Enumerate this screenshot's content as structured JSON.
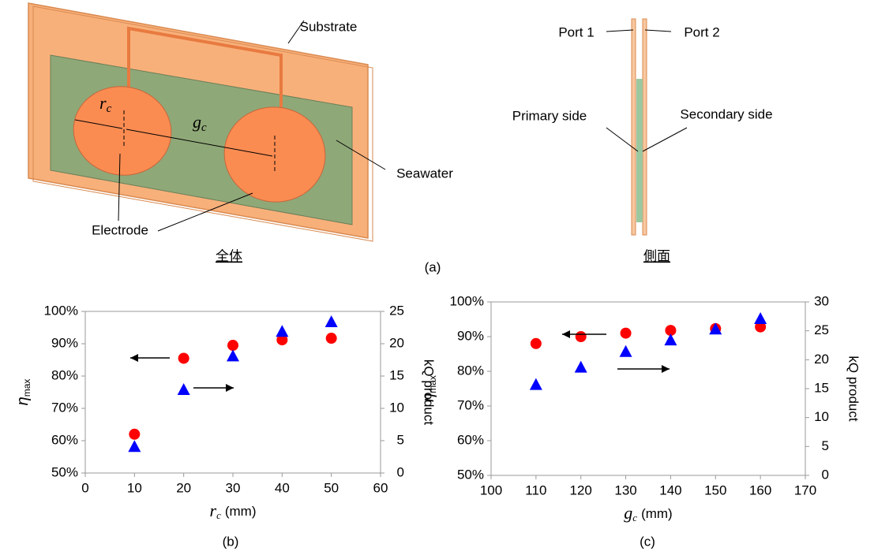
{
  "diagram": {
    "caption": "(a)",
    "overall": {
      "title": "全体",
      "substrate": "Substrate",
      "seawater": "Seawater",
      "electrode": "Electrode",
      "rc": {
        "main": "r",
        "sub": "c"
      },
      "gc": {
        "main": "g",
        "sub": "c"
      }
    },
    "side": {
      "title": "側面",
      "port1": "Port 1",
      "port2": "Port 2",
      "primary": "Primary side",
      "secondary": "Secondary side"
    }
  },
  "chart_data": [
    {
      "type": "scatter",
      "caption": "(b)",
      "xlabel": {
        "main": "r",
        "sub": "c",
        "unit": "(mm)"
      },
      "ylabel": {
        "main": "η",
        "sub": "max"
      },
      "y2label": "kQ product",
      "xlim": [
        0,
        60
      ],
      "xticks": [
        0,
        10,
        20,
        30,
        40,
        50,
        60
      ],
      "ylim": [
        50,
        100
      ],
      "yticks": [
        {
          "value": 50,
          "label": "50%"
        },
        {
          "value": 60,
          "label": "60%"
        },
        {
          "value": 70,
          "label": "70%"
        },
        {
          "value": 80,
          "label": "80%"
        },
        {
          "value": 90,
          "label": "90%"
        },
        {
          "value": 100,
          "label": "100%"
        }
      ],
      "y2lim": [
        0,
        25
      ],
      "y2ticks": [
        0,
        5,
        10,
        15,
        20,
        25
      ],
      "x": [
        10,
        20,
        30,
        40,
        50
      ],
      "series": [
        {
          "color": "#ff0000",
          "marker": "circle",
          "values": [
            62,
            85.5,
            89.5,
            91.2,
            91.7
          ]
        },
        {
          "color": "#0000ff",
          "marker": "triangle",
          "axis": "y2",
          "values": [
            4,
            12.8,
            18,
            21.8,
            23.3
          ]
        }
      ]
    },
    {
      "type": "scatter",
      "caption": "(c)",
      "xlabel": {
        "main": "g",
        "sub": "c",
        "unit": "(mm)"
      },
      "ylabel": {
        "main": "η",
        "sub": "max"
      },
      "y2label": "kQ product",
      "xlim": [
        100,
        170
      ],
      "xticks": [
        100,
        110,
        120,
        130,
        140,
        150,
        160,
        170
      ],
      "ylim": [
        50,
        100
      ],
      "yticks": [
        {
          "value": 50,
          "label": "50%"
        },
        {
          "value": 60,
          "label": "60%"
        },
        {
          "value": 70,
          "label": "70%"
        },
        {
          "value": 80,
          "label": "80%"
        },
        {
          "value": 90,
          "label": "90%"
        },
        {
          "value": 100,
          "label": "100%"
        }
      ],
      "y2lim": [
        0,
        30
      ],
      "y2ticks": [
        0,
        5,
        10,
        15,
        20,
        25,
        30
      ],
      "x": [
        110,
        120,
        130,
        140,
        150,
        160
      ],
      "series": [
        {
          "color": "#ff0000",
          "marker": "circle",
          "values": [
            88,
            90,
            91,
            91.8,
            92.3,
            92.8
          ]
        },
        {
          "color": "#0000ff",
          "marker": "triangle",
          "axis": "y2",
          "values": [
            15.6,
            18.6,
            21.3,
            23.3,
            25.2,
            27
          ]
        }
      ]
    }
  ]
}
